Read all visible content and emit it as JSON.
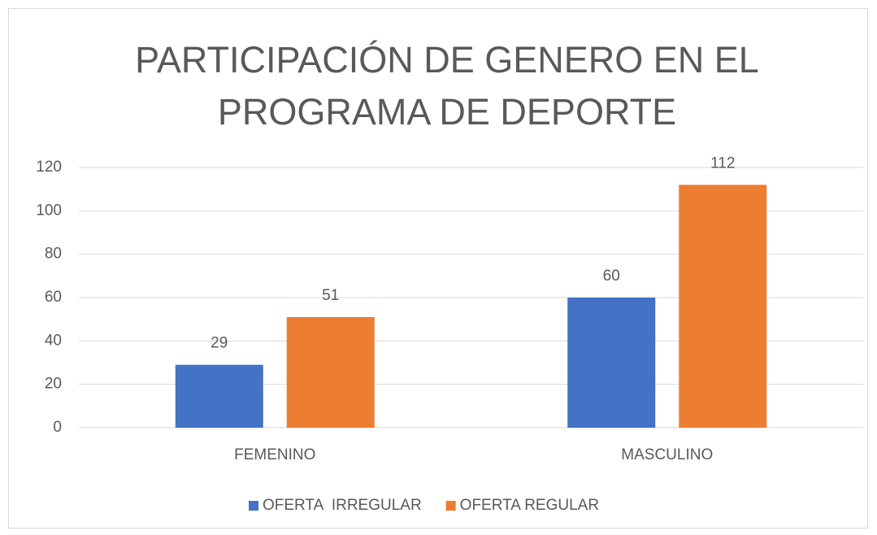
{
  "chart_data": {
    "type": "bar",
    "title": "PARTICIPACIÓN DE GENERO EN EL PROGRAMA DE DEPORTE",
    "categories": [
      "FEMENINO",
      "MASCULINO"
    ],
    "series": [
      {
        "name": "OFERTA  IRREGULAR",
        "color": "#4472c4",
        "values": [
          29,
          60
        ]
      },
      {
        "name": "OFERTA REGULAR",
        "color": "#ed7d31",
        "values": [
          51,
          112
        ]
      }
    ],
    "ylim": [
      0,
      120
    ],
    "yticks": [
      0,
      20,
      40,
      60,
      80,
      100,
      120
    ],
    "grid": true,
    "legend": "bottom"
  }
}
